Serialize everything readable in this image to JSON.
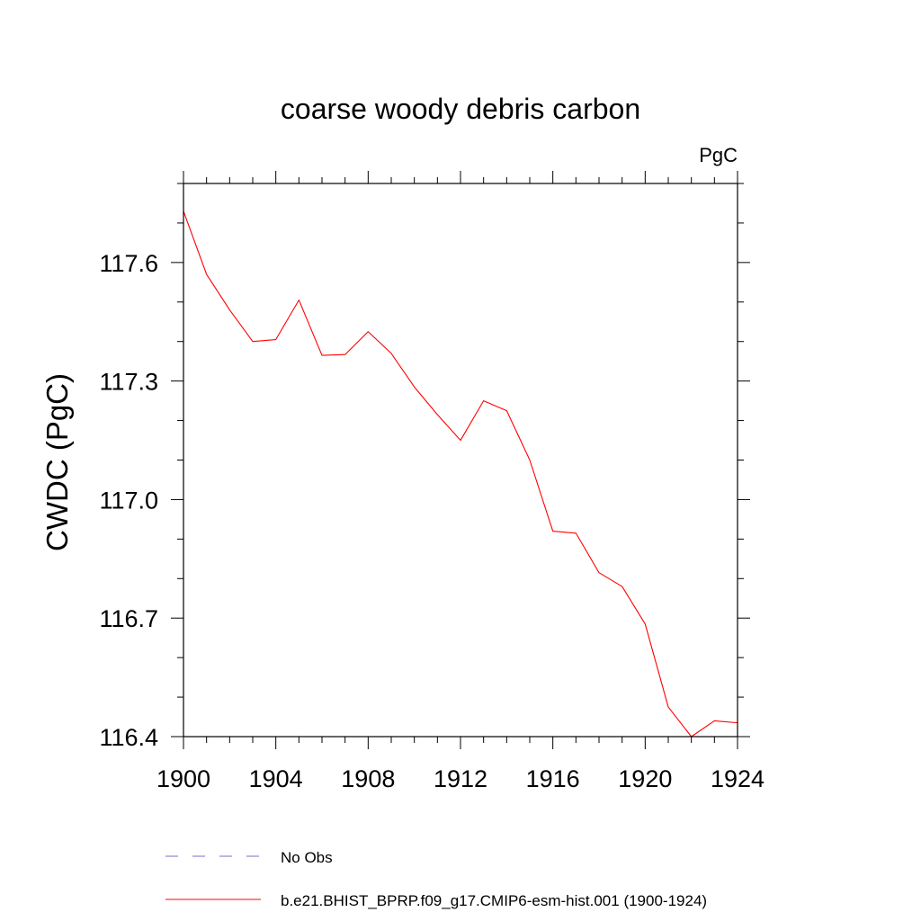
{
  "chart_data": {
    "type": "line",
    "title": "coarse woody debris carbon",
    "units_label": "PgC",
    "ylabel": "CWDC  (PgC)",
    "xlabel": "",
    "xlim": [
      1900,
      1924
    ],
    "ylim": [
      116.4,
      117.8
    ],
    "x_ticks": [
      1900,
      1904,
      1908,
      1912,
      1916,
      1920,
      1924
    ],
    "x_tick_labels": [
      "1900",
      "1904",
      "1908",
      "1912",
      "1916",
      "1920",
      "1924"
    ],
    "x_minor_step": 1,
    "y_ticks": [
      116.4,
      116.7,
      117.0,
      117.3,
      117.6
    ],
    "y_tick_labels": [
      "116.4",
      "116.7",
      "117.0",
      "117.3",
      "117.6"
    ],
    "y_minor_step": 0.1,
    "grid": false,
    "legend_position": "bottom",
    "legend": [
      {
        "label": "No Obs",
        "color": "#7b68c8",
        "style": "dashed"
      },
      {
        "label": "b.e21.BHIST_BPRP.f09_g17.CMIP6-esm-hist.001 (1900-1924)",
        "color": "#ff0000",
        "style": "solid"
      }
    ],
    "series": [
      {
        "color": "#ff0000",
        "x": [
          1900,
          1901,
          1902,
          1903,
          1904,
          1905,
          1906,
          1907,
          1908,
          1909,
          1910,
          1911,
          1912,
          1913,
          1914,
          1915,
          1916,
          1917,
          1918,
          1919,
          1920,
          1921,
          1922,
          1923,
          1924
        ],
        "values": [
          117.73,
          117.57,
          117.48,
          117.4,
          117.405,
          117.505,
          117.365,
          117.367,
          117.425,
          117.37,
          117.285,
          117.215,
          117.15,
          117.25,
          117.225,
          117.1,
          116.92,
          116.915,
          116.815,
          116.78,
          116.685,
          116.475,
          116.4,
          116.44,
          116.435
        ]
      }
    ]
  }
}
